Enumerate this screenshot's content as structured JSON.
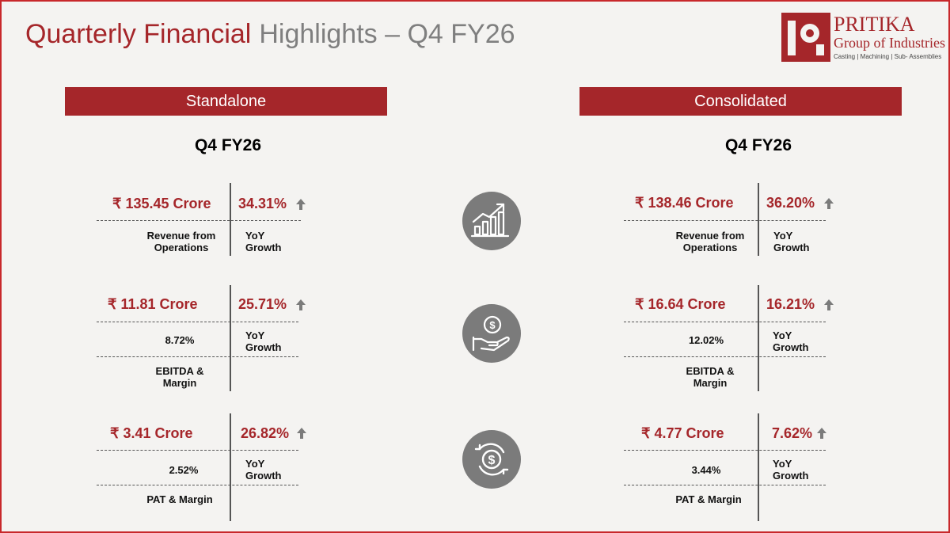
{
  "title": {
    "part1": "Quarterly Financial",
    "part2": "Highlights – Q4 FY26"
  },
  "logo": {
    "name": "PRITIKA",
    "subtitle": "Group of Industries",
    "tagline": "Casting | Machining | Sub- Assemblies"
  },
  "colors": {
    "accent": "#a5262a",
    "text": "#000000",
    "icon_bg": "#7b7b7b"
  },
  "standalone": {
    "banner": "Standalone",
    "period": "Q4 FY26",
    "revenue": {
      "value": "₹ 135.45 Crore",
      "growth": "34.31%",
      "label1": "Revenue from",
      "label2": "Operations",
      "growth_label1": "YoY",
      "growth_label2": "Growth"
    },
    "ebitda": {
      "value": "₹ 11.81 Crore",
      "growth": "25.71%",
      "margin": "8.72%",
      "label1": "EBITDA &",
      "label2": "Margin",
      "growth_label1": "YoY",
      "growth_label2": "Growth"
    },
    "pat": {
      "value": "₹ 3.41 Crore",
      "growth": "26.82%",
      "margin": "2.52%",
      "label": "PAT & Margin",
      "growth_label1": "YoY",
      "growth_label2": "Growth"
    }
  },
  "consolidated": {
    "banner": "Consolidated",
    "period": "Q4 FY26",
    "revenue": {
      "value": "₹ 138.46 Crore",
      "growth": "36.20%",
      "label1": "Revenue from",
      "label2": "Operations",
      "growth_label1": "YoY",
      "growth_label2": "Growth"
    },
    "ebitda": {
      "value": "₹ 16.64 Crore",
      "growth": "16.21%",
      "margin": "12.02%",
      "label1": "EBITDA &",
      "label2": "Margin",
      "growth_label1": "YoY",
      "growth_label2": "Growth"
    },
    "pat": {
      "value": "₹ 4.77 Crore",
      "growth": "7.62%",
      "margin": "3.44%",
      "label": "PAT & Margin",
      "growth_label1": "YoY",
      "growth_label2": "Growth"
    }
  },
  "icons": [
    "growth-chart-icon",
    "money-hand-icon",
    "dollar-cycle-icon"
  ]
}
